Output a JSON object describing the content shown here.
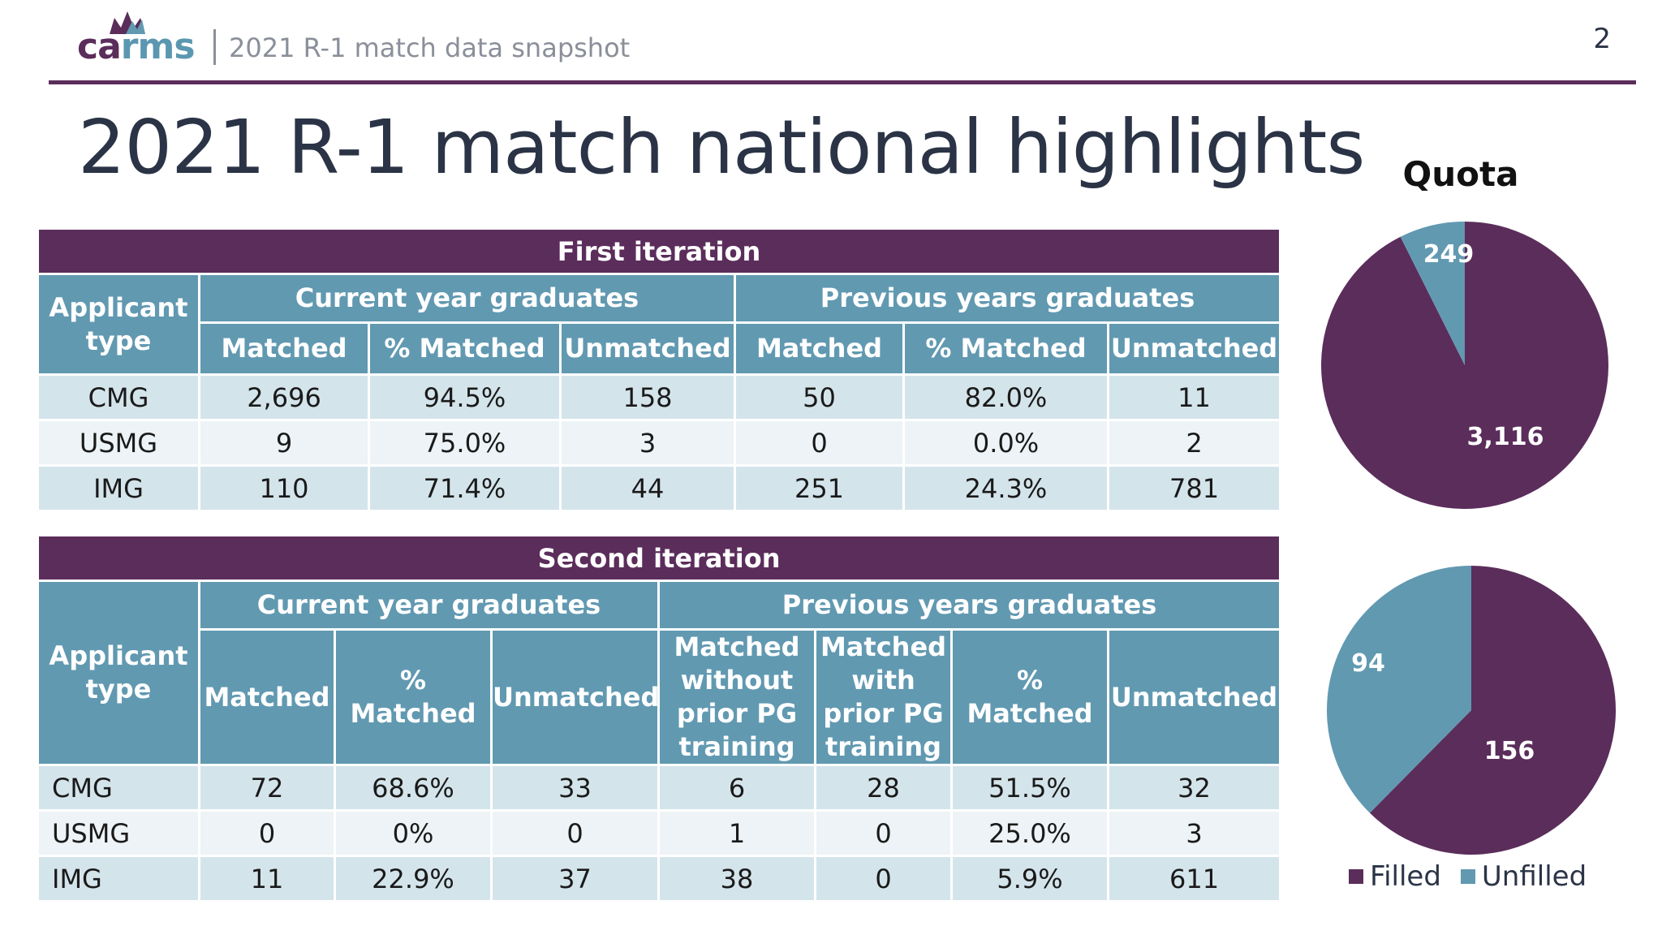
{
  "header": {
    "logo_ca": "ca",
    "logo_rms": "rms",
    "subtitle": "2021 R-1 match data snapshot",
    "page_number": "2"
  },
  "title": "2021 R-1 match national highlights",
  "colors": {
    "filled": "#5b2d5b",
    "unfilled": "#6199b1",
    "header_bg": "#6199b1",
    "iteration_bg": "#5b2d5b"
  },
  "first_iteration": {
    "title": "First iteration",
    "applicant_type_label": "Applicant type",
    "current_label": "Current year graduates",
    "previous_label": "Previous years graduates",
    "columns": [
      "Matched",
      "% Matched",
      "Unmatched",
      "Matched",
      "% Matched",
      "Unmatched"
    ],
    "rows": [
      [
        "CMG",
        "2,696",
        "94.5%",
        "158",
        "50",
        "82.0%",
        "11"
      ],
      [
        "USMG",
        "9",
        "75.0%",
        "3",
        "0",
        "0.0%",
        "2"
      ],
      [
        "IMG",
        "110",
        "71.4%",
        "44",
        "251",
        "24.3%",
        "781"
      ]
    ]
  },
  "second_iteration": {
    "title": "Second iteration",
    "applicant_type_label": "Applicant type",
    "current_label": "Current year graduates",
    "previous_label": "Previous years graduates",
    "columns": [
      "Matched",
      "% Matched",
      "Unmatched",
      "Matched without prior PG training",
      "Matched with prior PG training",
      "% Matched",
      "Unmatched"
    ],
    "rows": [
      [
        "CMG",
        "72",
        "68.6%",
        "33",
        "6",
        "28",
        "51.5%",
        "32"
      ],
      [
        "USMG",
        "0",
        "0%",
        "0",
        "1",
        "0",
        "25.0%",
        "3"
      ],
      [
        "IMG",
        "11",
        "22.9%",
        "37",
        "38",
        "0",
        "5.9%",
        "611"
      ]
    ]
  },
  "chart_data": [
    {
      "type": "pie",
      "title": "Quota",
      "labels": [
        "Filled",
        "Unfilled"
      ],
      "values": [
        3116,
        249
      ],
      "value_labels": [
        "3,116",
        "249"
      ]
    },
    {
      "type": "pie",
      "title": "",
      "labels": [
        "Filled",
        "Unfilled"
      ],
      "values": [
        156,
        94
      ],
      "value_labels": [
        "156",
        "94"
      ]
    }
  ],
  "legend": {
    "filled": "Filled",
    "unfilled": "Unfilled"
  }
}
